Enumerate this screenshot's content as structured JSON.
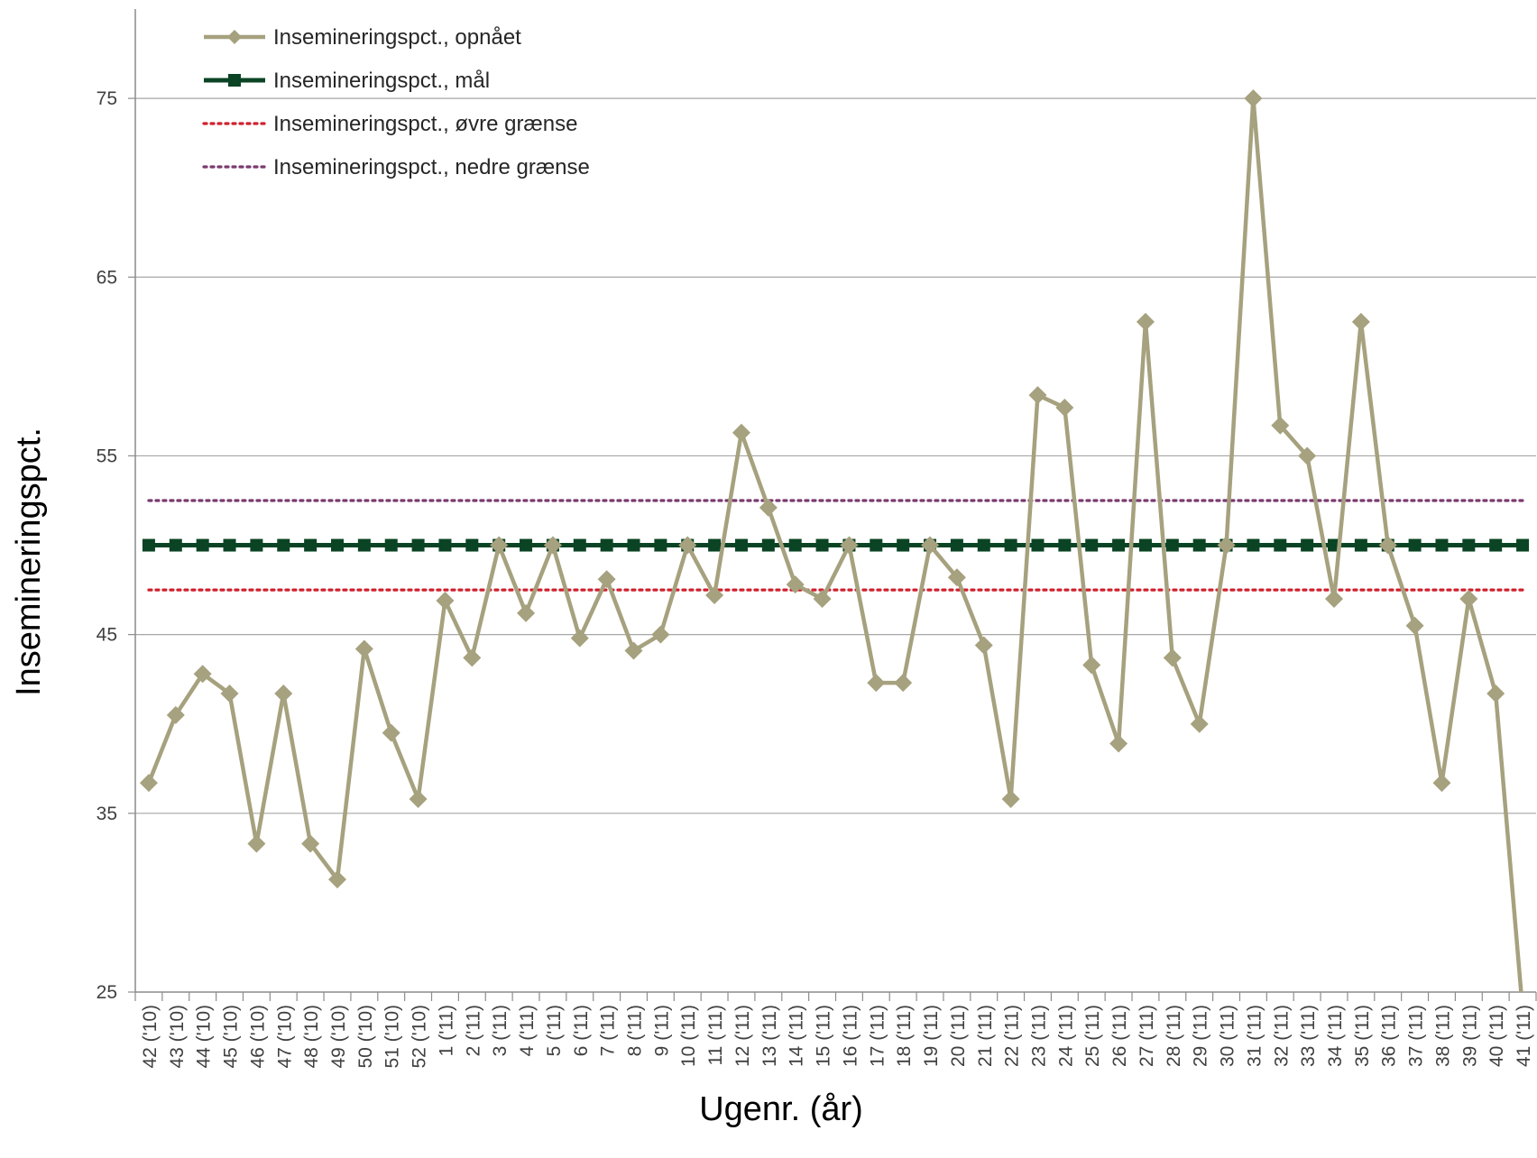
{
  "chart_data": {
    "type": "line",
    "xlabel": "Ugenr. (år)",
    "ylabel": "Insemineringspct.",
    "ylim": [
      25,
      80
    ],
    "yticks": [
      25,
      35,
      45,
      55,
      65,
      75
    ],
    "grid": "horizontal",
    "legend_position": "top-left",
    "categories": [
      "42 ('10)",
      "43 ('10)",
      "44 ('10)",
      "45 ('10)",
      "46 ('10)",
      "47 ('10)",
      "48 ('10)",
      "49 ('10)",
      "50 ('10)",
      "51 ('10)",
      "52 ('10)",
      "1 ('11)",
      "2 ('11)",
      "3 ('11)",
      "4 ('11)",
      "5 ('11)",
      "6 ('11)",
      "7 ('11)",
      "8 ('11)",
      "9 ('11)",
      "10 ('11)",
      "11 ('11)",
      "12 ('11)",
      "13 ('11)",
      "14 ('11)",
      "15 ('11)",
      "16 ('11)",
      "17 ('11)",
      "18 ('11)",
      "19 ('11)",
      "20 ('11)",
      "21 ('11)",
      "22 ('11)",
      "23 ('11)",
      "24 ('11)",
      "25 ('11)",
      "26 ('11)",
      "27 ('11)",
      "28 ('11)",
      "29 ('11)",
      "30 ('11)",
      "31 ('11)",
      "32 ('11)",
      "33 ('11)",
      "34 ('11)",
      "35 ('11)",
      "36 ('11)",
      "37 ('11)",
      "38 ('11)",
      "39 ('11)",
      "40 ('11)",
      "41 ('11)"
    ],
    "series": [
      {
        "name": "Insemineringspct., opnået",
        "color": "#a6a17e",
        "marker": "diamond",
        "style": "solid",
        "values": [
          36.7,
          40.5,
          42.8,
          41.7,
          33.3,
          41.7,
          33.3,
          31.3,
          44.2,
          39.5,
          35.8,
          46.9,
          43.7,
          50.0,
          46.2,
          50.0,
          44.8,
          48.1,
          44.1,
          45.0,
          50.0,
          47.2,
          56.3,
          52.1,
          47.8,
          47.0,
          50.0,
          42.3,
          42.3,
          50.0,
          48.2,
          44.4,
          35.8,
          58.4,
          57.7,
          43.3,
          38.9,
          62.5,
          43.7,
          40.0,
          50.0,
          75.0,
          56.7,
          55.0,
          47.0,
          62.5,
          50.0,
          45.5,
          36.7,
          47.0,
          41.7,
          24.0
        ]
      },
      {
        "name": "Insemineringspct., mål",
        "color": "#0b4424",
        "marker": "square",
        "style": "solid",
        "constant": 50
      },
      {
        "name": "Insemineringspct., øvre grænse",
        "color": "#d0202e",
        "marker": "none",
        "style": "dotted",
        "constant": 47.5
      },
      {
        "name": "Insemineringspct., nedre grænse",
        "color": "#7a3a6e",
        "marker": "none",
        "style": "dotted",
        "constant": 52.5
      }
    ]
  },
  "colors": {
    "grid": "#a6a6a6",
    "axis": "#8c8c8c"
  }
}
